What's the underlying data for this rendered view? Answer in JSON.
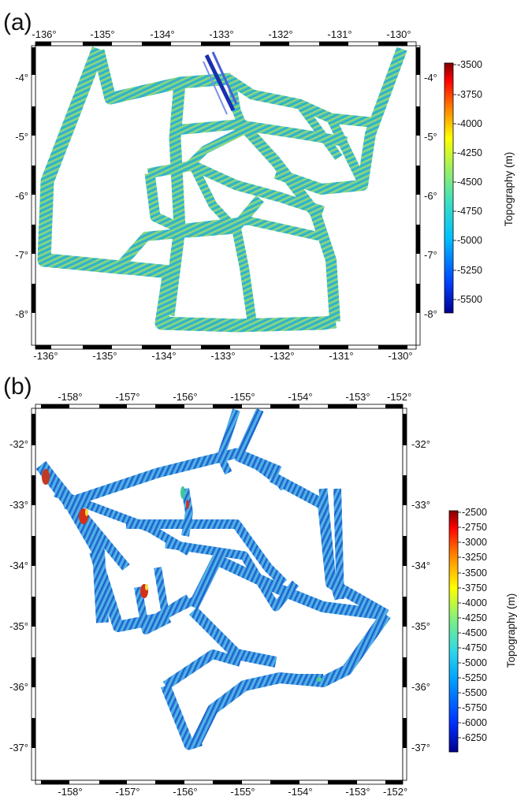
{
  "panel_a": {
    "label": "(a)",
    "colorbar_title": "Topography (m)",
    "top_tick_labels": [
      "-136°",
      "-135°",
      "-134°",
      "-133°",
      "-132°",
      "-131°",
      "-130°"
    ],
    "bottom_tick_labels": [
      "-136°",
      "-135°",
      "-134°",
      "-133°",
      "-132°",
      "-131°",
      "-130°"
    ],
    "left_tick_labels": [
      "-4°",
      "-5°",
      "-6°",
      "-7°",
      "-8°"
    ],
    "right_tick_labels": [
      "-4°",
      "-5°",
      "-6°",
      "-7°",
      "-8°"
    ],
    "colorbar_ticks": [
      "-3500",
      "-3750",
      "-4000",
      "-4250",
      "-4500",
      "-4750",
      "-5000",
      "-5250",
      "-5500"
    ],
    "colors": {
      "track_base": "#48c6a8",
      "track_stripe": "#2f9fd8",
      "track_high": "#cfe04a",
      "track_deep": "#1a2fb0"
    }
  },
  "panel_b": {
    "label": "(b)",
    "colorbar_title": "Topography (m)",
    "top_tick_labels": [
      "-158°",
      "-157°",
      "-156°",
      "-155°",
      "-154°",
      "-153°",
      "-152°"
    ],
    "bottom_tick_labels": [
      "-158°",
      "-157°",
      "-156°",
      "-155°",
      "-154°",
      "-153°",
      "-152°"
    ],
    "left_tick_labels": [
      "-32°",
      "-33°",
      "-34°",
      "-35°",
      "-36°",
      "-37°"
    ],
    "right_tick_labels": [
      "-32°",
      "-33°",
      "-34°",
      "-35°",
      "-36°",
      "-37°"
    ],
    "colorbar_ticks": [
      "-2500",
      "-2750",
      "-3000",
      "-3250",
      "-3500",
      "-3750",
      "-4000",
      "-4250",
      "-4500",
      "-4750",
      "-5000",
      "-5250",
      "-5500",
      "-5750",
      "-6000",
      "-6250"
    ],
    "colors": {
      "track_base": "#2f8fe0",
      "track_stripe": "#1c55c8",
      "track_high": "#4fd3a0",
      "track_peak": "#d02a1a"
    }
  }
}
